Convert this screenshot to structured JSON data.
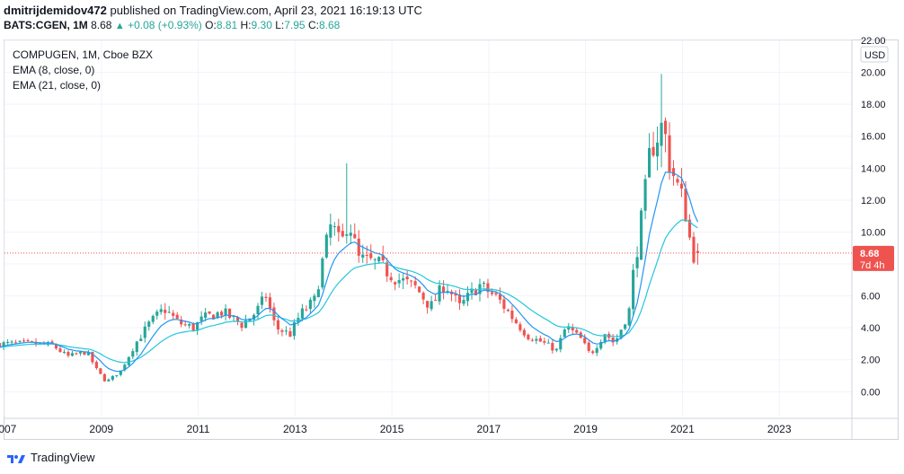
{
  "header": {
    "author": "dmitrijdemidov472",
    "published_text": "published on TradingView.com, April 23, 2021 16:19:13 UTC",
    "symbol_line": "BATS:CGEN, 1M",
    "price": "8.68",
    "change_arrow": "▲",
    "change": "+0.08 (+0.93%)",
    "o_label": "O:",
    "o_value": "8.81",
    "h_label": "H:",
    "h_value": "9.30",
    "l_label": "L:",
    "l_value": "7.95",
    "c_label": "C:",
    "c_value": "8.68"
  },
  "legend": {
    "title": "COMPUGEN, 1M, Cboe BZX",
    "ema8": "EMA (8, close, 0)",
    "ema21": "EMA (21, close, 0)"
  },
  "price_axis": {
    "currency": "USD",
    "last_price": "8.68",
    "countdown": "7d 4h"
  },
  "footer": {
    "brand": "TradingView"
  },
  "colors": {
    "up": "#26a69a",
    "down": "#ef5350",
    "ema8": "#2196f3",
    "ema21": "#26c6da",
    "grid": "#f0f3fa"
  },
  "chart_data": {
    "type": "candlestick",
    "title": "COMPUGEN, 1M, Cboe BZX",
    "ylim": [
      -1.5,
      22
    ],
    "yticks": [
      0,
      2,
      4,
      6,
      8,
      10,
      12,
      14,
      16,
      18,
      20,
      22
    ],
    "ytick_labels": [
      "0.00",
      "2.00",
      "4.00",
      "6.00",
      "8.00",
      "10.00",
      "12.00",
      "14.00",
      "16.00",
      "18.00",
      "20.00",
      "22.00"
    ],
    "xlim": [
      2007,
      2024.5
    ],
    "xticks": [
      2007,
      2009,
      2011,
      2013,
      2015,
      2017,
      2019,
      2021,
      2023
    ],
    "xtick_labels": [
      "2007",
      "2009",
      "2011",
      "2013",
      "2015",
      "2017",
      "2019",
      "2021",
      "2023"
    ],
    "last_price": 8.68,
    "close_anchors": [
      [
        2007.0,
        3.0
      ],
      [
        2007.6,
        3.0
      ],
      [
        2008.0,
        2.9
      ],
      [
        2008.3,
        2.2
      ],
      [
        2008.7,
        2.5
      ],
      [
        2008.9,
        1.4
      ],
      [
        2009.1,
        0.6
      ],
      [
        2009.4,
        1.3
      ],
      [
        2009.7,
        3.0
      ],
      [
        2010.0,
        4.3
      ],
      [
        2010.3,
        5.2
      ],
      [
        2010.6,
        4.3
      ],
      [
        2010.9,
        4.0
      ],
      [
        2011.1,
        4.6
      ],
      [
        2011.5,
        5.0
      ],
      [
        2011.9,
        4.2
      ],
      [
        2012.2,
        5.0
      ],
      [
        2012.4,
        6.0
      ],
      [
        2012.6,
        4.0
      ],
      [
        2012.9,
        3.6
      ],
      [
        2013.1,
        4.8
      ],
      [
        2013.4,
        5.7
      ],
      [
        2013.6,
        8.6
      ],
      [
        2013.75,
        10.5
      ],
      [
        2013.95,
        9.0
      ],
      [
        2014.1,
        11.0
      ],
      [
        2014.3,
        8.3
      ],
      [
        2014.7,
        8.0
      ],
      [
        2015.1,
        7.1
      ],
      [
        2015.5,
        6.5
      ],
      [
        2015.8,
        5.3
      ],
      [
        2016.1,
        6.8
      ],
      [
        2016.4,
        5.3
      ],
      [
        2016.8,
        6.7
      ],
      [
        2017.2,
        5.8
      ],
      [
        2017.5,
        4.6
      ],
      [
        2017.8,
        3.5
      ],
      [
        2018.1,
        3.1
      ],
      [
        2018.4,
        2.6
      ],
      [
        2018.6,
        4.1
      ],
      [
        2018.9,
        3.3
      ],
      [
        2019.1,
        2.3
      ],
      [
        2019.4,
        3.7
      ],
      [
        2019.6,
        3.0
      ],
      [
        2019.9,
        5.1
      ],
      [
        2020.0,
        7.8
      ],
      [
        2020.2,
        11.6
      ],
      [
        2020.35,
        15.4
      ],
      [
        2020.6,
        16.7
      ],
      [
        2020.75,
        14.2
      ],
      [
        2020.9,
        12.8
      ],
      [
        2021.05,
        11.6
      ],
      [
        2021.2,
        8.6
      ],
      [
        2021.3,
        8.68
      ]
    ],
    "ema8_end": 10.7,
    "ema21_end": 10.1
  }
}
